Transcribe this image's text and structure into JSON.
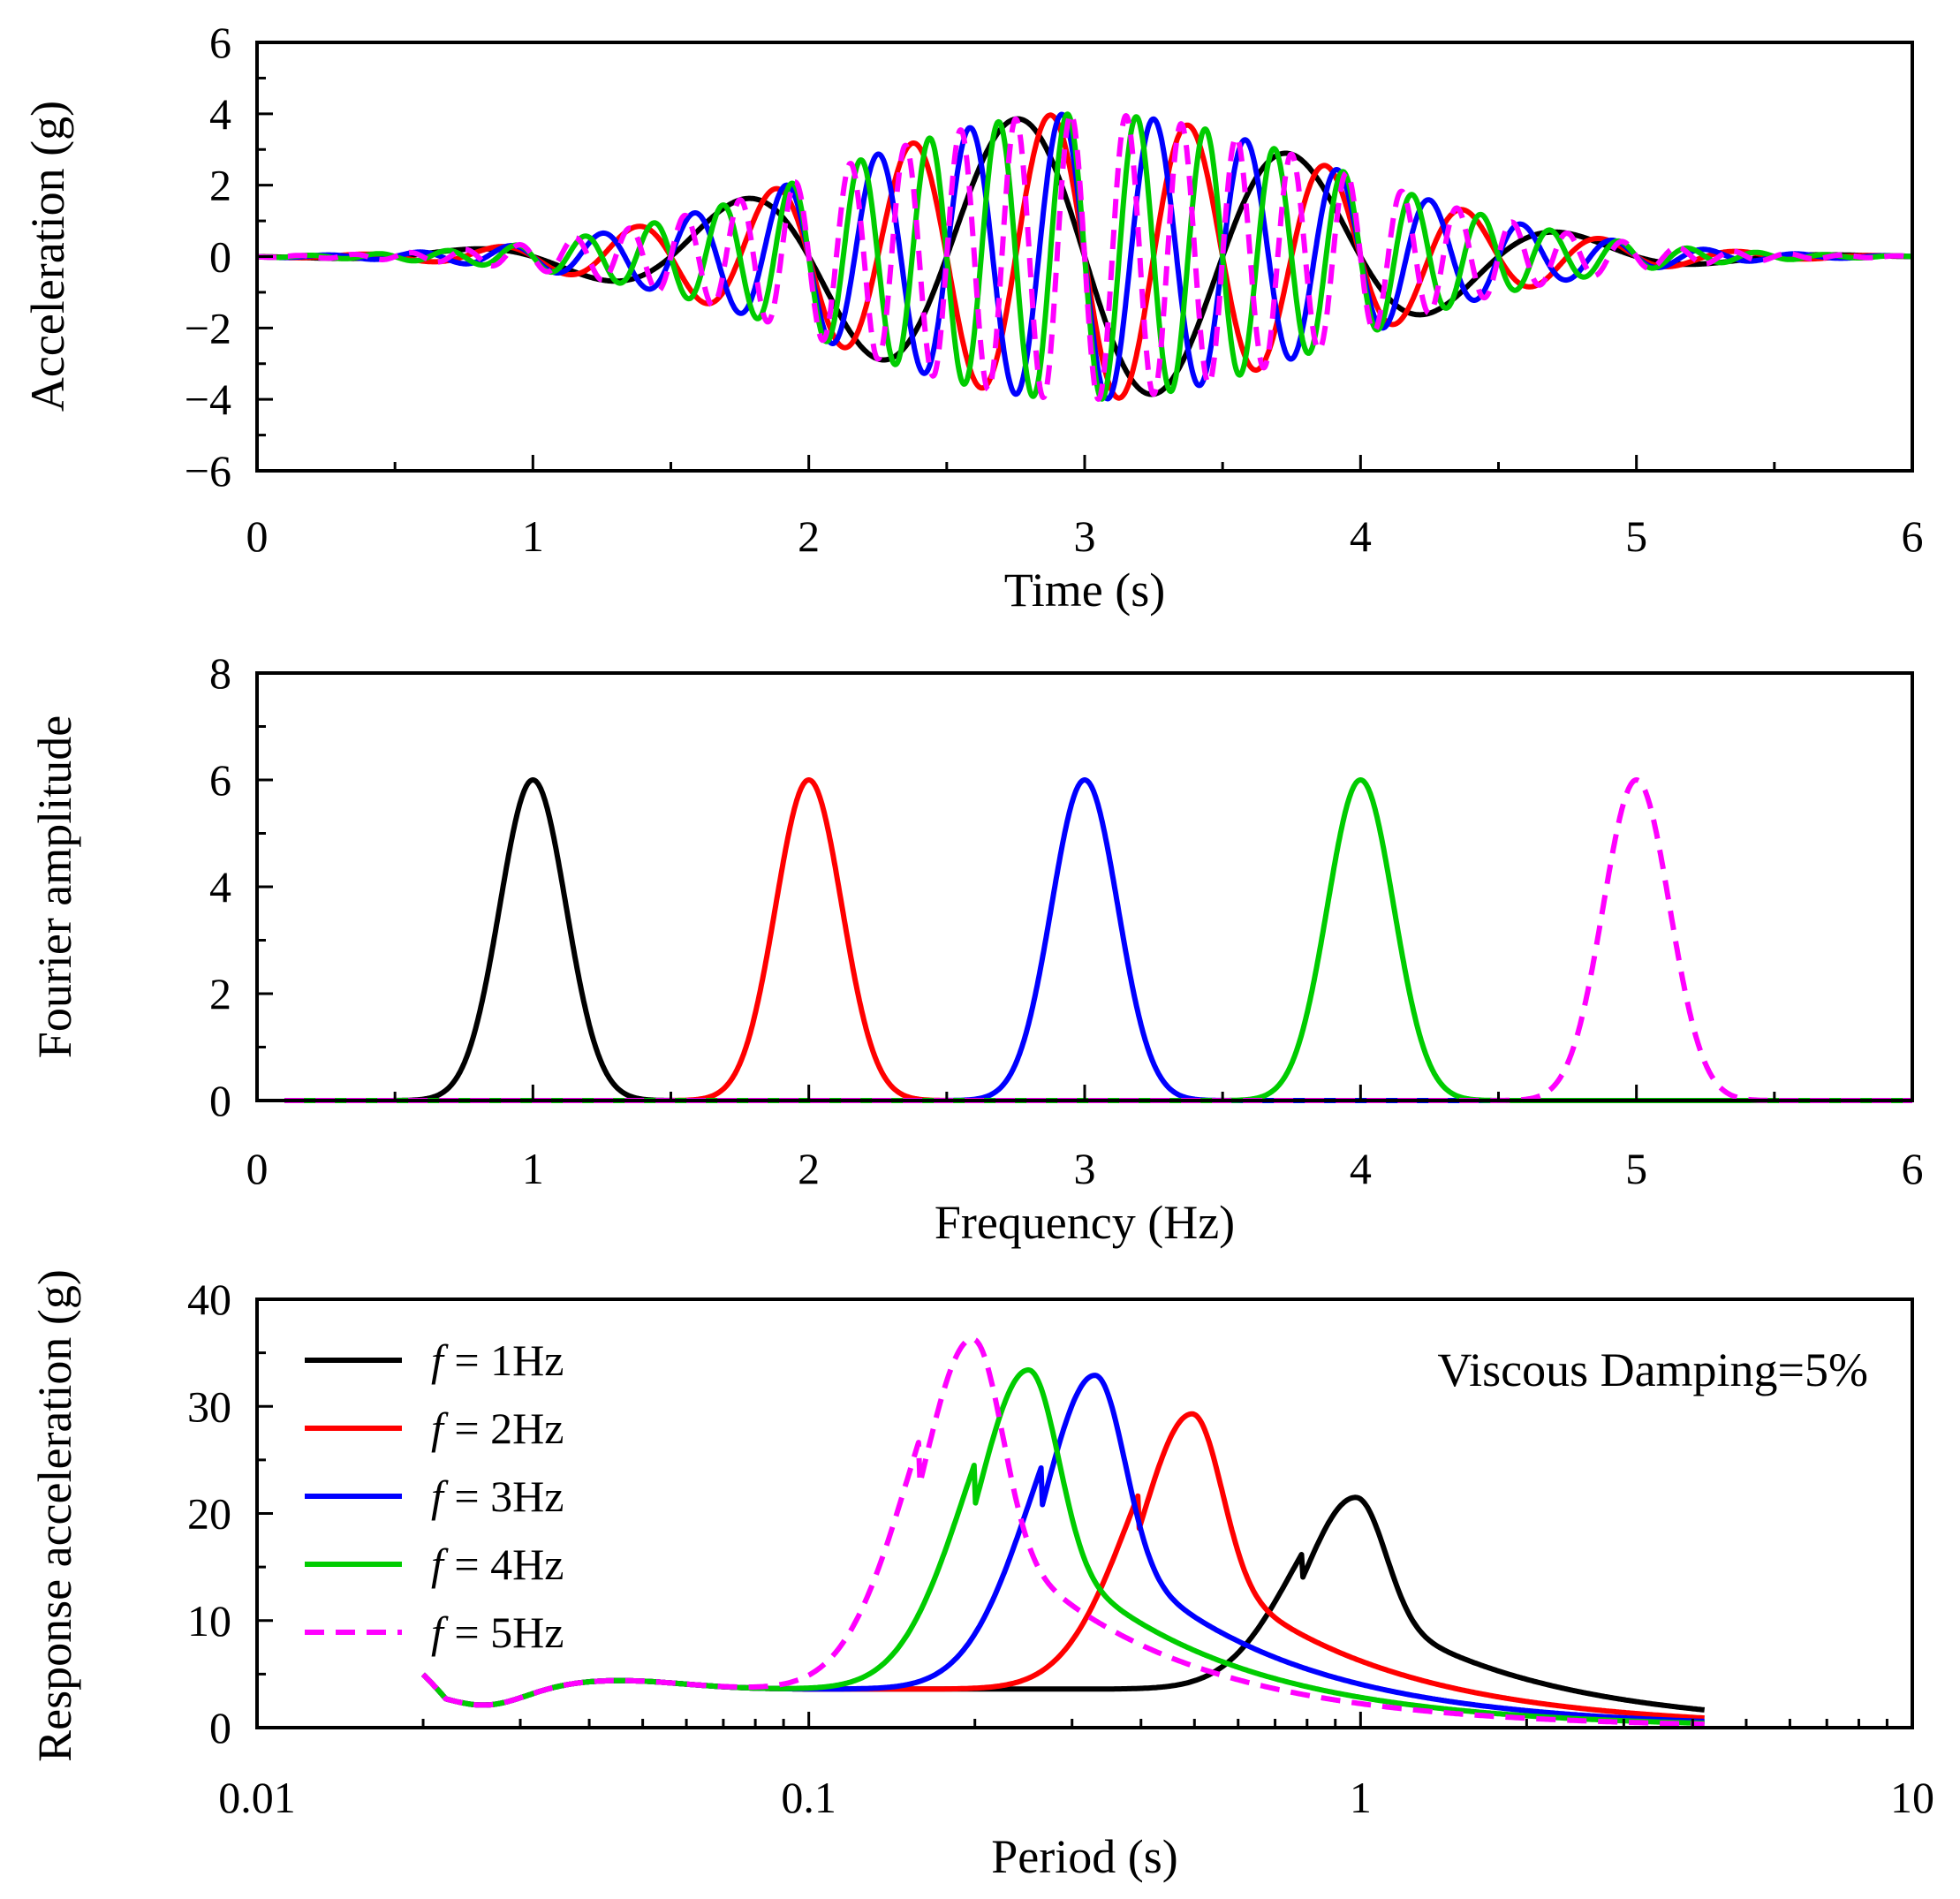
{
  "chart_data": [
    {
      "type": "line",
      "xlabel": "Time (s)",
      "ylabel": "Acceleration (g)",
      "xlim": [
        0,
        6
      ],
      "ylim": [
        -6,
        6
      ],
      "xticks": [
        "0",
        "1",
        "2",
        "3",
        "4",
        "5",
        "6"
      ],
      "yticks": [
        "−6",
        "−4",
        "−2",
        "0",
        "2",
        "4",
        "6"
      ],
      "grid": false,
      "series": [
        {
          "frequency_hz": 1,
          "color": "#000000",
          "dashed": false,
          "peak": 4.0
        },
        {
          "frequency_hz": 2,
          "color": "#ff0000",
          "dashed": false,
          "peak": 4.0
        },
        {
          "frequency_hz": 3,
          "color": "#0000ff",
          "dashed": false,
          "peak": 4.0
        },
        {
          "frequency_hz": 4,
          "color": "#00cc00",
          "dashed": false,
          "peak": 4.0
        },
        {
          "frequency_hz": 5,
          "color": "#ff00ff",
          "dashed": true,
          "peak": 4.0
        }
      ]
    },
    {
      "type": "line",
      "xlabel": "Frequency (Hz)",
      "ylabel": "Fourier amplitude",
      "xlim": [
        0,
        6
      ],
      "ylim": [
        0,
        8
      ],
      "xticks": [
        "0",
        "1",
        "2",
        "3",
        "4",
        "5",
        "6"
      ],
      "yticks": [
        "0",
        "2",
        "4",
        "6",
        "8"
      ],
      "grid": false,
      "series": [
        {
          "center_hz": 1,
          "peak": 6.0,
          "color": "#000000",
          "dashed": false
        },
        {
          "center_hz": 2,
          "peak": 6.0,
          "color": "#ff0000",
          "dashed": false
        },
        {
          "center_hz": 3,
          "peak": 6.0,
          "color": "#0000ff",
          "dashed": false
        },
        {
          "center_hz": 4,
          "peak": 6.0,
          "color": "#00cc00",
          "dashed": false
        },
        {
          "center_hz": 5,
          "peak": 6.0,
          "color": "#ff00ff",
          "dashed": true
        }
      ]
    },
    {
      "type": "line",
      "xlabel": "Period (s)",
      "ylabel": "Response acceleration (g)",
      "xscale": "log",
      "xlim": [
        0.01,
        10
      ],
      "ylim": [
        0,
        40
      ],
      "xticks": [
        "0.01",
        "0.1",
        "1",
        "10"
      ],
      "yticks": [
        "0",
        "10",
        "20",
        "30",
        "40"
      ],
      "grid": false,
      "annotation": "Viscous Damping=5%",
      "legend_position": "top-left",
      "series": [
        {
          "name_prefix": "f",
          "name_suffix": " = 1Hz",
          "color": "#000000",
          "dashed": false,
          "peak_period": 0.98,
          "peak": 21.5
        },
        {
          "name_prefix": "f",
          "name_suffix": " = 2Hz",
          "color": "#ff0000",
          "dashed": false,
          "peak_period": 0.495,
          "peak": 29.3
        },
        {
          "name_prefix": "f",
          "name_suffix": " = 3Hz",
          "color": "#0000ff",
          "dashed": false,
          "peak_period": 0.33,
          "peak": 32.9
        },
        {
          "name_prefix": "f",
          "name_suffix": " = 4Hz",
          "color": "#00cc00",
          "dashed": false,
          "peak_period": 0.25,
          "peak": 33.4
        },
        {
          "name_prefix": "f",
          "name_suffix": " = 5Hz",
          "color": "#ff00ff",
          "dashed": true,
          "peak_period": 0.198,
          "peak": 36.3
        }
      ]
    }
  ]
}
